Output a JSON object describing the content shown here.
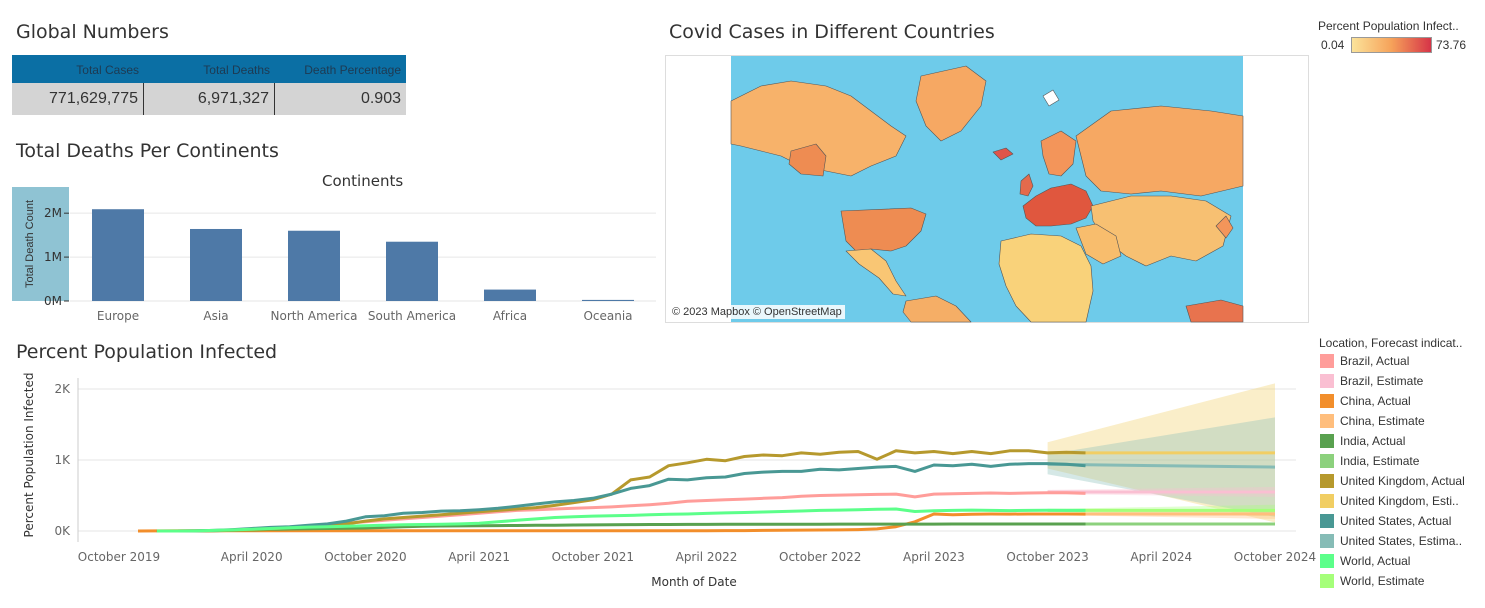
{
  "global_numbers": {
    "title": "Global Numbers",
    "headers": [
      "Total Cases",
      "Total Deaths",
      "Death Percentage"
    ],
    "values": [
      "771,629,775",
      "6,971,327",
      "0.903"
    ]
  },
  "colors": {
    "bar": "#4e79a7",
    "table_header": "#0b6fa4",
    "ocean": "#6ecbea"
  },
  "chart_data": [
    {
      "type": "bar",
      "title": "Total Deaths Per Continents",
      "subtitle": "Continents",
      "ylabel": "Total Death Count",
      "categories": [
        "Europe",
        "Asia",
        "North America",
        "South America",
        "Africa",
        "Oceania"
      ],
      "values": [
        2090000,
        1640000,
        1600000,
        1350000,
        260000,
        25000
      ],
      "ylim": [
        0,
        2300000
      ],
      "yticks": [
        {
          "v": 0,
          "label": "0M"
        },
        {
          "v": 1000000,
          "label": "1M"
        },
        {
          "v": 2000000,
          "label": "2M"
        }
      ],
      "grid": true
    },
    {
      "type": "line",
      "title": "Percent Population Infected",
      "xlabel": "Month of Date",
      "ylabel": "Percent Population Infected",
      "ylim": [
        0,
        2100
      ],
      "yticks": [
        {
          "v": 0,
          "label": "0K"
        },
        {
          "v": 1000,
          "label": "1K"
        },
        {
          "v": 2000,
          "label": "2K"
        }
      ],
      "xticks": [
        {
          "t": 0,
          "label": "October 2019"
        },
        {
          "t": 6,
          "label": "April 2020"
        },
        {
          "t": 12,
          "label": "October 2020"
        },
        {
          "t": 18,
          "label": "April 2021"
        },
        {
          "t": 24,
          "label": "October 2021"
        },
        {
          "t": 30,
          "label": "April 2022"
        },
        {
          "t": 36,
          "label": "October 2022"
        },
        {
          "t": 42,
          "label": "April 2023"
        },
        {
          "t": 48,
          "label": "October 2023"
        },
        {
          "t": 54,
          "label": "April 2024"
        },
        {
          "t": 60,
          "label": "October 2024"
        }
      ],
      "legend_title": "Location, Forecast indicat..",
      "legend": [
        {
          "label": "Brazil, Actual",
          "color": "#ff9d9a"
        },
        {
          "label": "Brazil, Estimate",
          "color": "#fabfd2"
        },
        {
          "label": "China, Actual",
          "color": "#f28e2b"
        },
        {
          "label": "China, Estimate",
          "color": "#ffbe7d"
        },
        {
          "label": "India, Actual",
          "color": "#59a14f"
        },
        {
          "label": "India, Estimate",
          "color": "#8cd17d"
        },
        {
          "label": "United Kingdom, Actual",
          "color": "#b6992d"
        },
        {
          "label": "United Kingdom, Esti..",
          "color": "#f1ce63"
        },
        {
          "label": "United States, Actual",
          "color": "#499894"
        },
        {
          "label": "United States, Estima..",
          "color": "#86bcb6"
        },
        {
          "label": "World, Actual",
          "color": "#5cff8a"
        },
        {
          "label": "World, Estimate",
          "color": "#a5ff7a"
        }
      ],
      "series": [
        {
          "name": "Brazil, Actual",
          "color": "#ff9d9a",
          "start": 1,
          "values": [
            0,
            0,
            2,
            5,
            10,
            20,
            35,
            55,
            70,
            90,
            110,
            130,
            150,
            170,
            190,
            210,
            230,
            250,
            270,
            290,
            300,
            310,
            320,
            330,
            340,
            355,
            370,
            390,
            420,
            430,
            440,
            450,
            460,
            470,
            490,
            500,
            505,
            510,
            515,
            520,
            480,
            520,
            525,
            530,
            535,
            530,
            535,
            540,
            540,
            530
          ]
        },
        {
          "name": "China, Actual",
          "color": "#f28e2b",
          "start": 0,
          "values": [
            0,
            2,
            3,
            3,
            3,
            3,
            3,
            3,
            3,
            3,
            3,
            3,
            3,
            3,
            3,
            3,
            3,
            3,
            3,
            3,
            3,
            3,
            3,
            3,
            3,
            3,
            3,
            3,
            3,
            3,
            4,
            5,
            6,
            8,
            10,
            12,
            14,
            16,
            20,
            30,
            60,
            130,
            240,
            230,
            235,
            240,
            238,
            240,
            240,
            240,
            238
          ]
        },
        {
          "name": "India, Actual",
          "color": "#59a14f",
          "start": 1,
          "values": [
            0,
            0,
            1,
            3,
            8,
            15,
            22,
            28,
            32,
            35,
            38,
            42,
            50,
            60,
            66,
            70,
            72,
            74,
            76,
            78,
            80,
            82,
            84,
            86,
            88,
            90,
            91,
            92,
            93,
            93,
            94,
            94,
            95,
            95,
            96,
            96,
            97,
            97,
            97,
            97,
            97,
            97,
            98,
            98,
            98,
            98,
            98,
            98,
            98,
            98
          ]
        },
        {
          "name": "United Kingdom, Actual",
          "color": "#b6992d",
          "start": 1,
          "values": [
            0,
            0,
            0,
            5,
            10,
            20,
            30,
            45,
            60,
            80,
            100,
            140,
            170,
            190,
            210,
            230,
            250,
            270,
            290,
            310,
            330,
            360,
            400,
            440,
            520,
            720,
            760,
            920,
            960,
            1010,
            990,
            1050,
            1070,
            1060,
            1100,
            1080,
            1110,
            1120,
            1010,
            1130,
            1100,
            1120,
            1090,
            1120,
            1090,
            1130,
            1130,
            1100,
            1110,
            1100
          ]
        },
        {
          "name": "United States, Actual",
          "color": "#499894",
          "start": 1,
          "values": [
            0,
            0,
            1,
            8,
            20,
            35,
            50,
            60,
            80,
            100,
            140,
            200,
            215,
            250,
            260,
            280,
            285,
            300,
            320,
            350,
            380,
            410,
            430,
            460,
            520,
            600,
            640,
            730,
            720,
            750,
            760,
            810,
            830,
            840,
            840,
            870,
            860,
            880,
            900,
            910,
            840,
            930,
            920,
            940,
            910,
            940,
            950,
            950,
            940,
            920
          ]
        },
        {
          "name": "World, Actual",
          "color": "#5cff8a",
          "start": 1,
          "values": [
            0,
            0,
            2,
            8,
            15,
            25,
            35,
            45,
            55,
            60,
            68,
            75,
            82,
            88,
            92,
            96,
            100,
            110,
            130,
            150,
            170,
            190,
            200,
            210,
            215,
            220,
            228,
            235,
            240,
            248,
            255,
            260,
            268,
            275,
            282,
            290,
            295,
            300,
            305,
            310,
            275,
            285,
            290,
            295,
            290,
            288,
            290,
            292,
            290,
            290
          ]
        }
      ],
      "forecast": [
        {
          "name": "United Kingdom, Esti..",
          "color": "#f1ce63",
          "value": 1100,
          "lower_end": 120,
          "upper_end": 2080,
          "band_start": [
            880,
            1250
          ]
        },
        {
          "name": "United States, Estima..",
          "color": "#86bcb6",
          "value_start": 940,
          "value_end": 900,
          "lower_end": 200,
          "upper_end": 1600,
          "band_start": [
            800,
            1080
          ]
        },
        {
          "name": "Brazil, Estimate",
          "color": "#fabfd2",
          "value": 550,
          "lower_end": 480,
          "upper_end": 620,
          "band_start": [
            520,
            580
          ]
        },
        {
          "name": "World, Estimate",
          "color": "#a5ff7a",
          "value": 290,
          "lower_end": 210,
          "upper_end": 370,
          "band_start": [
            270,
            310
          ]
        },
        {
          "name": "China, Estimate",
          "color": "#ffbe7d",
          "value": 240,
          "lower_end": 170,
          "upper_end": 300,
          "band_start": [
            225,
            255
          ]
        },
        {
          "name": "India, Estimate",
          "color": "#8cd17d",
          "value": 98,
          "lower_end": 80,
          "upper_end": 120,
          "band_start": [
            92,
            104
          ]
        }
      ],
      "forecast_range": [
        48,
        60
      ]
    }
  ],
  "map": {
    "title": "Covid Cases in Different Countries",
    "legend_title": "Percent Population Infect..",
    "legend_min": "0.04",
    "legend_max": "73.76",
    "credit": "© 2023 Mapbox © OpenStreetMap"
  }
}
